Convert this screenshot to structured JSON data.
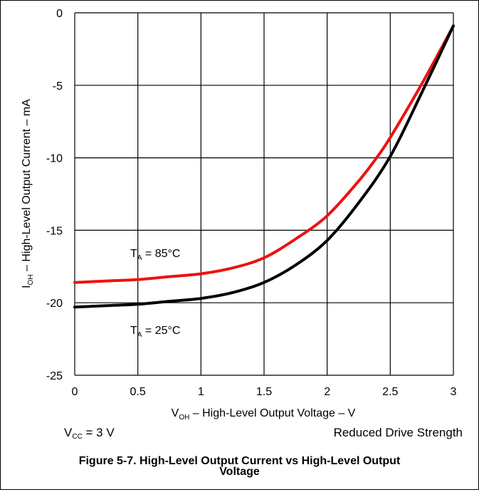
{
  "chart_data": {
    "type": "line",
    "xlabel": {
      "main": "V",
      "sub": "OH",
      "rest": " – High-Level Output Voltage – V"
    },
    "ylabel": {
      "main": "I",
      "sub": "OH",
      "rest": " – High-Level Output Current – mA"
    },
    "xlim": [
      0,
      3
    ],
    "ylim": [
      -25,
      0
    ],
    "x_ticks": [
      0,
      0.5,
      1,
      1.5,
      2,
      2.5,
      3
    ],
    "x_tick_labels": [
      "0",
      "0.5",
      "1",
      "1.5",
      "2",
      "2.5",
      "3"
    ],
    "y_ticks": [
      0,
      -5,
      -10,
      -15,
      -20,
      -25
    ],
    "y_tick_labels": [
      "0",
      "-5",
      "-10",
      "-15",
      "-20",
      "-25"
    ],
    "grid": true,
    "series": [
      {
        "label": {
          "main": "T",
          "sub": "A",
          "rest": " = 85°C"
        },
        "color": "#ee1111",
        "x": [
          0,
          0.25,
          0.5,
          0.75,
          1.0,
          1.25,
          1.5,
          1.75,
          2.0,
          2.25,
          2.4,
          2.5,
          2.75,
          3.0
        ],
        "y": [
          -18.6,
          -18.5,
          -18.4,
          -18.2,
          -18.0,
          -17.6,
          -16.9,
          -15.6,
          -14.0,
          -11.6,
          -9.9,
          -8.6,
          -4.9,
          -0.9
        ]
      },
      {
        "label": {
          "main": "T",
          "sub": "A",
          "rest": " = 25°C"
        },
        "color": "#000000",
        "x": [
          0,
          0.25,
          0.5,
          0.75,
          1.0,
          1.25,
          1.5,
          1.75,
          2.0,
          2.25,
          2.5,
          2.75,
          3.0
        ],
        "y": [
          -20.3,
          -20.2,
          -20.1,
          -19.9,
          -19.7,
          -19.3,
          -18.6,
          -17.4,
          -15.7,
          -13.1,
          -9.9,
          -5.5,
          -0.9
        ]
      }
    ],
    "conditions": {
      "vcc": {
        "main": "V",
        "sub": "CC",
        "rest": " = 3 V"
      },
      "drive": "Reduced Drive Strength"
    },
    "caption": {
      "line1": "Figure 5-7. High-Level Output Current vs High-Level Output",
      "line2": "Voltage"
    }
  }
}
